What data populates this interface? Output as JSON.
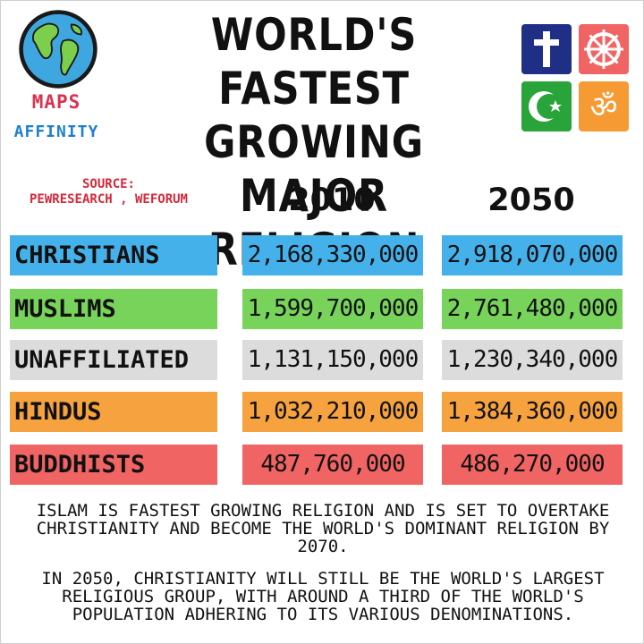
{
  "brand": {
    "line1": "MAPS",
    "line2": "AFFINITY"
  },
  "title": {
    "lines": [
      "WORLD'S FASTEST",
      "GROWING MAJOR",
      "RELIGION"
    ]
  },
  "source": {
    "label": "SOURCE:",
    "value": "PEWRESEARCH , WEFORUM"
  },
  "symbols": [
    {
      "name": "cross-icon",
      "color": "#1f2f86"
    },
    {
      "name": "dharma-wheel-icon",
      "color": "#f06564"
    },
    {
      "name": "crescent-star-icon",
      "color": "#29a43a"
    },
    {
      "name": "om-icon",
      "color": "#f69a33"
    }
  ],
  "chart_data": {
    "type": "table",
    "title": "WORLD'S FASTEST GROWING MAJOR RELIGION",
    "columns": [
      "2010",
      "2050"
    ],
    "rows": [
      {
        "label": "CHRISTIANS",
        "color": "#45b1eb",
        "values": [
          2168330000,
          2918070000
        ],
        "display": [
          "2,168,330,000",
          "2,918,070,000"
        ]
      },
      {
        "label": "MUSLIMS",
        "color": "#78d35a",
        "values": [
          1599700000,
          2761480000
        ],
        "display": [
          "1,599,700,000",
          "2,761,480,000"
        ]
      },
      {
        "label": "UNAFFILIATED",
        "color": "#dcdcdc",
        "values": [
          1131150000,
          1230340000
        ],
        "display": [
          "1,131,150,000",
          "1,230,340,000"
        ]
      },
      {
        "label": "HINDUS",
        "color": "#f6a33f",
        "values": [
          1032210000,
          1384360000
        ],
        "display": [
          "1,032,210,000",
          "1,384,360,000"
        ]
      },
      {
        "label": "BUDDHISTS",
        "color": "#f06464",
        "values": [
          487760000,
          486270000
        ],
        "display": [
          "487,760,000",
          "486,270,000"
        ]
      }
    ]
  },
  "notes": [
    [
      "ISLAM IS FASTEST GROWING RELIGION AND IS  SET TO OVERTAKE",
      "CHRISTIANITY AND BECOME THE WORLD'S DOMINANT RELIGION BY",
      "2070."
    ],
    [
      "IN 2050, CHRISTIANITY WILL STILL BE THE WORLD'S LARGEST",
      "RELIGIOUS GROUP, WITH AROUND A THIRD OF THE WORLD'S",
      "POPULATION ADHERING TO ITS VARIOUS DENOMINATIONS."
    ]
  ]
}
